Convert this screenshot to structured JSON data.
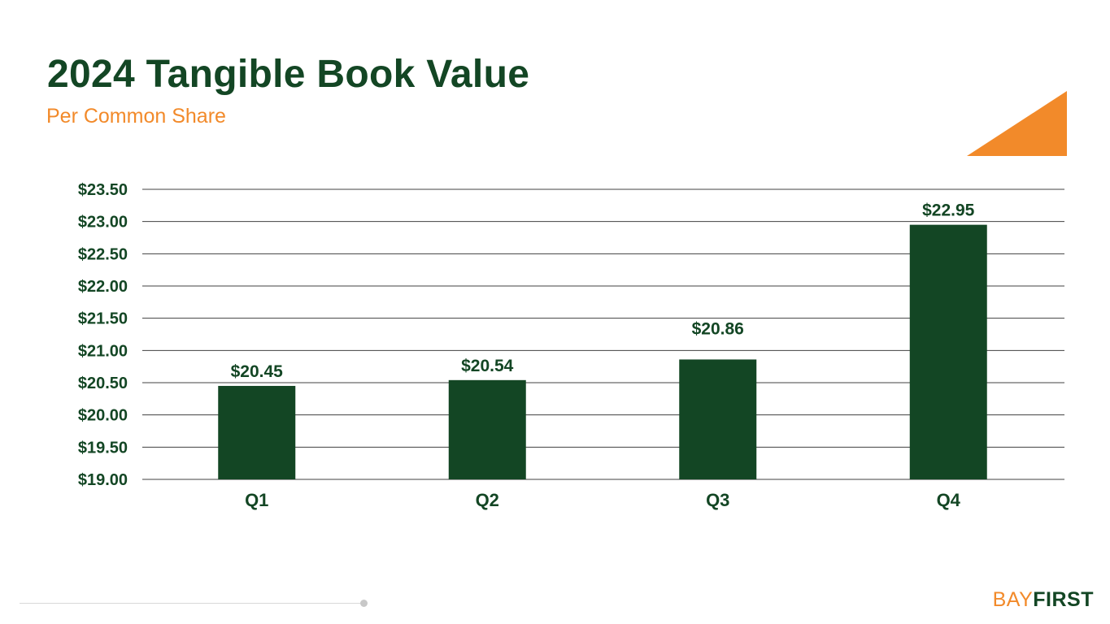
{
  "slide": {
    "title": "2024 Tangible Book Value",
    "subtitle": "Per Common Share"
  },
  "logo": {
    "part1": "BAY",
    "part2": "FIRST"
  },
  "colors": {
    "bar": "#134624",
    "title": "#134624",
    "accent": "#f28a2a",
    "gridline": "#404040"
  },
  "chart_data": {
    "type": "bar",
    "categories": [
      "Q1",
      "Q2",
      "Q3",
      "Q4"
    ],
    "values": [
      20.45,
      20.54,
      20.86,
      22.95
    ],
    "data_labels": [
      "$20.45",
      "$20.54",
      "$20.86",
      "$22.95"
    ],
    "ylim": [
      19.0,
      23.5
    ],
    "yticks": [
      19.0,
      19.5,
      20.0,
      20.5,
      21.0,
      21.5,
      22.0,
      22.5,
      23.0,
      23.5
    ],
    "ytick_labels": [
      "$19.00",
      "$19.50",
      "$20.00",
      "$20.50",
      "$21.00",
      "$21.50",
      "$22.00",
      "$22.50",
      "$23.00",
      "$23.50"
    ],
    "grid": true,
    "legend": "none",
    "title": "2024 Tangible Book Value",
    "subtitle": "Per Common Share",
    "xlabel": "",
    "ylabel": ""
  }
}
